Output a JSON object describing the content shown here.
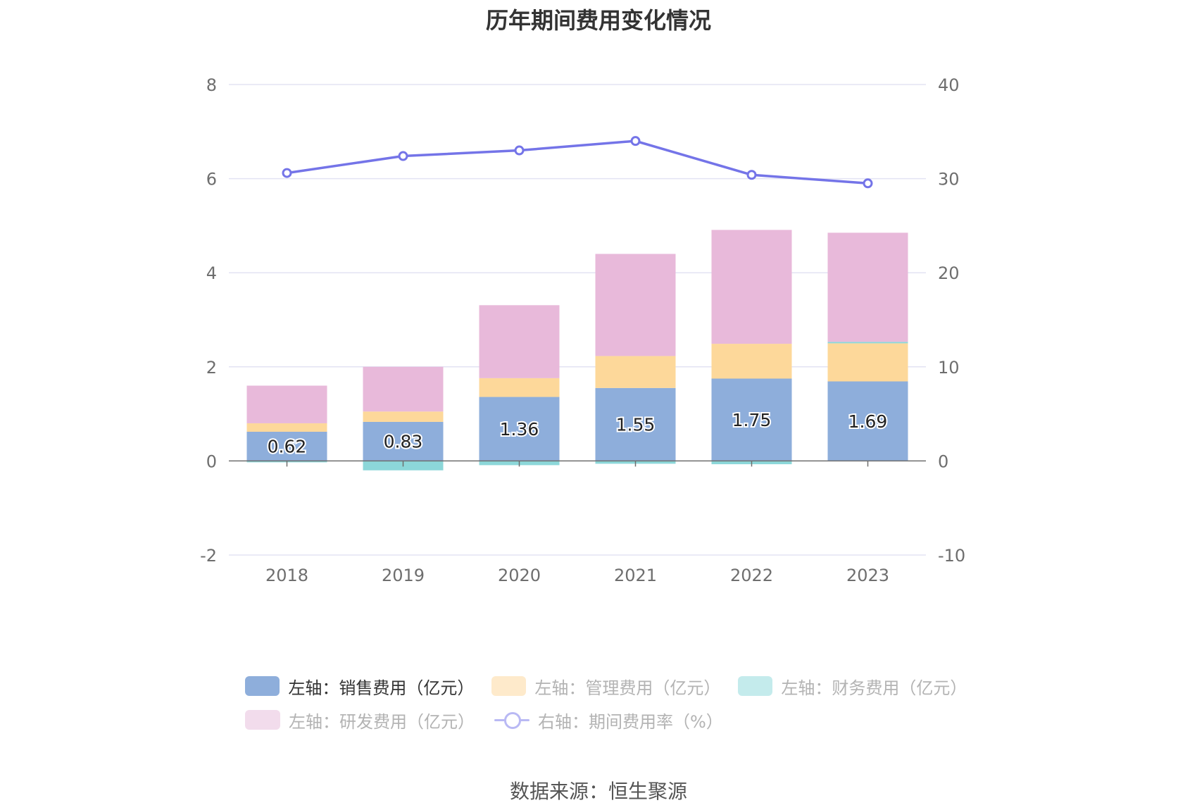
{
  "title": "历年期间费用变化情况",
  "source": "数据来源：恒生聚源",
  "chart_data": {
    "type": "bar",
    "stacked": true,
    "categories": [
      "2018",
      "2019",
      "2020",
      "2021",
      "2022",
      "2023"
    ],
    "y_left": {
      "ticks": [
        "-2",
        "0",
        "2",
        "4",
        "6",
        "8"
      ],
      "ylim": [
        -2,
        8
      ]
    },
    "y_right": {
      "ticks": [
        "-10",
        "0",
        "10",
        "20",
        "30",
        "40"
      ],
      "ylim": [
        -10,
        40
      ]
    },
    "series": [
      {
        "name": "左轴：销售费用（亿元）",
        "axis": "left",
        "color": "#8eaedb",
        "values": [
          0.62,
          0.83,
          1.36,
          1.55,
          1.75,
          1.69
        ],
        "labels": [
          "0.62",
          "0.83",
          "1.36",
          "1.55",
          "1.75",
          "1.69"
        ]
      },
      {
        "name": "左轴：管理费用（亿元）",
        "axis": "left",
        "color": "#fdd89a",
        "values": [
          0.18,
          0.22,
          0.4,
          0.68,
          0.74,
          0.81
        ]
      },
      {
        "name": "左轴：财务费用（亿元）",
        "axis": "left",
        "color": "#8cd7d9",
        "values": [
          -0.03,
          -0.2,
          -0.09,
          -0.06,
          -0.07,
          0.03
        ]
      },
      {
        "name": "左轴：研发费用（亿元）",
        "axis": "left",
        "color": "#e8b9da",
        "values": [
          0.8,
          0.95,
          1.55,
          2.17,
          2.42,
          2.32
        ]
      },
      {
        "name": "右轴：期间费用率（%）",
        "axis": "right",
        "type": "line",
        "color": "#7474e8",
        "values": [
          30.6,
          32.4,
          33.0,
          34.0,
          30.4,
          29.5
        ]
      }
    ]
  },
  "legend": [
    {
      "label": "左轴：销售费用（亿元）",
      "color": "#8eaedb",
      "active": true
    },
    {
      "label": "左轴：管理费用（亿元）",
      "color": "#feeacb",
      "active": false
    },
    {
      "label": "左轴：财务费用（亿元）",
      "color": "#c4ebec",
      "active": false
    },
    {
      "label": "左轴：研发费用（亿元）",
      "color": "#f2dcec",
      "active": false
    },
    {
      "label": "右轴：期间费用率（%）",
      "color": "#b9b9f4",
      "active": false
    }
  ]
}
